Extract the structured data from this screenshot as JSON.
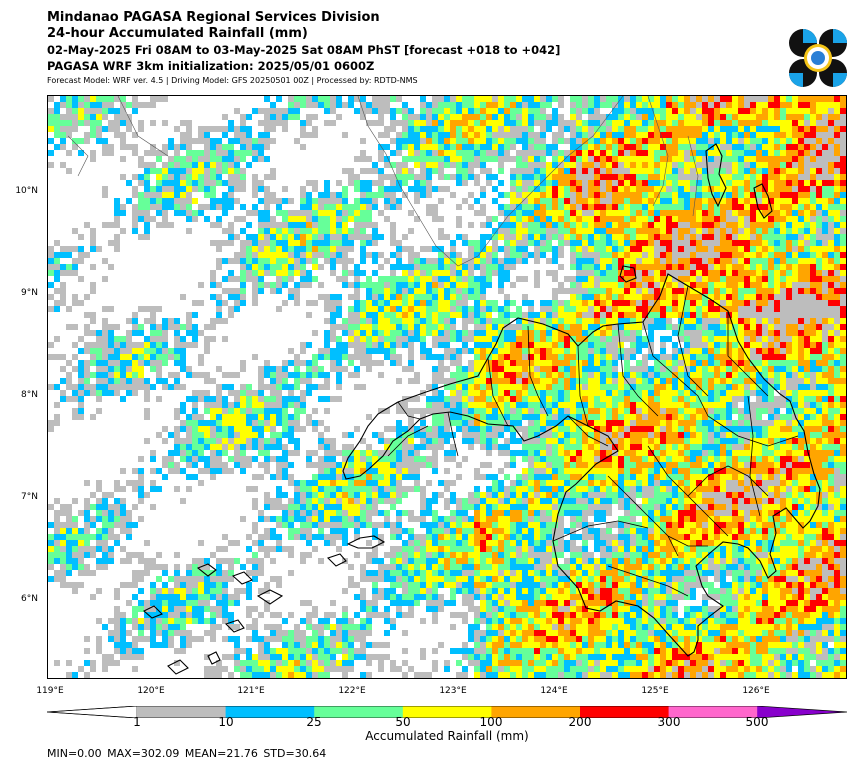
{
  "header": {
    "line1": "Mindanao PAGASA Regional Services Division",
    "line2": "24-hour Accumulated Rainfall (mm)",
    "line3": "02-May-2025 Fri 08AM to 03-May-2025 Sat 08AM PhST [forecast +018 to +042]",
    "line4": "PAGASA WRF 3km initialization: 2025/05/01 0600Z",
    "line5": "Forecast Model: WRF ver. 4.5 | Driving Model: GFS 20250501 00Z | Processed by: RDTD-NMS"
  },
  "map": {
    "lat_labels": [
      "10°N",
      "9°N",
      "8°N",
      "7°N",
      "6°N"
    ],
    "lon_labels": [
      "119°E",
      "120°E",
      "121°E",
      "122°E",
      "123°E",
      "124°E",
      "125°E",
      "126°E"
    ]
  },
  "colorbar": {
    "ticks": [
      "1",
      "10",
      "25",
      "50",
      "100",
      "200",
      "300",
      "500"
    ],
    "colors": [
      "#ffffff",
      "#bdbdbd",
      "#00bfff",
      "#66ff99",
      "#ffff00",
      "#ffa500",
      "#ff0000",
      "#ff66cc",
      "#8800cc"
    ],
    "label": "Accumulated Rainfall (mm)"
  },
  "stats": "MIN=0.00   MAX=302.09   MEAN=21.76   STD=30.64"
}
